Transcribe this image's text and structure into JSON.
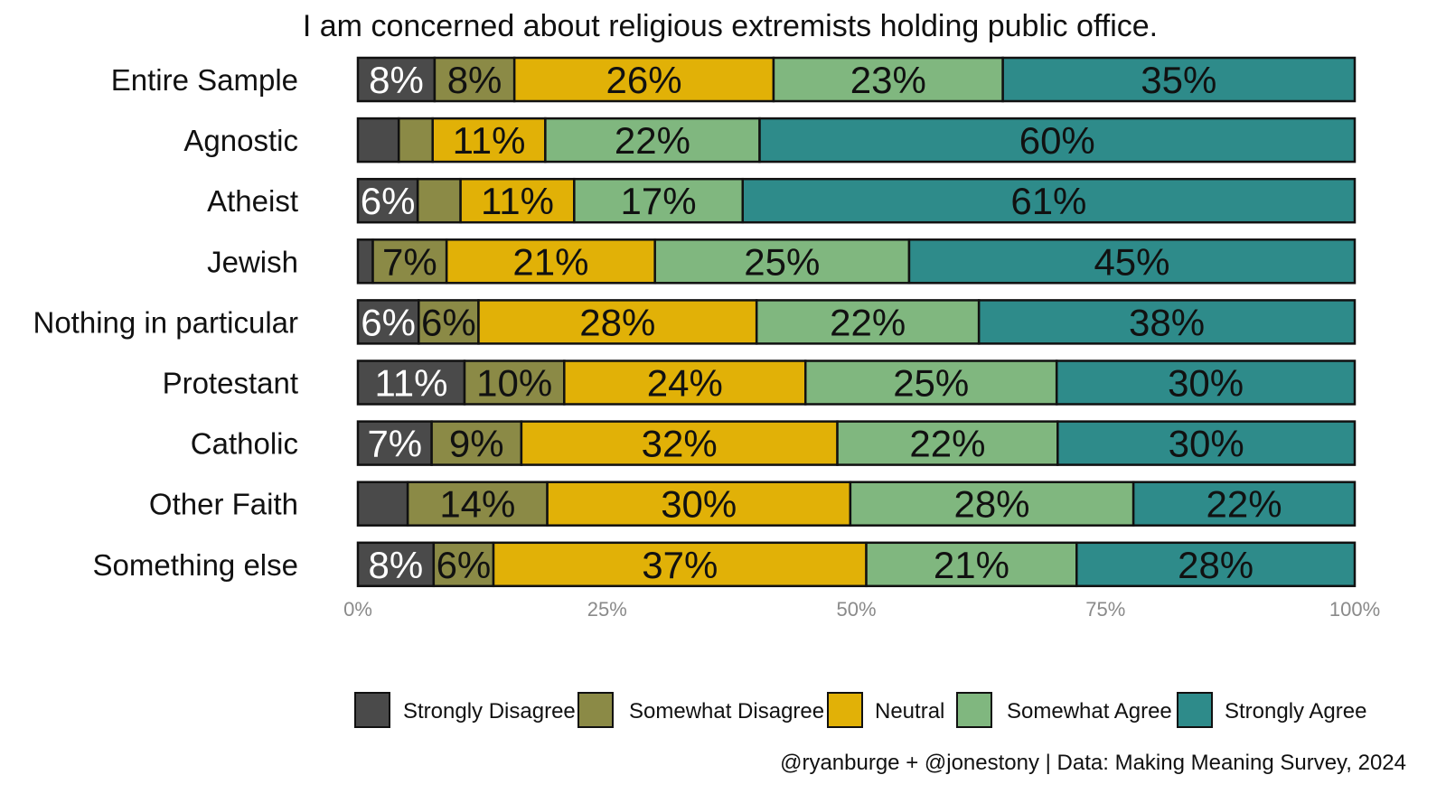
{
  "chart_data": {
    "type": "bar",
    "orientation": "horizontal",
    "stacked": true,
    "title": "I am concerned about religious extremists holding public office.",
    "caption": "@ryanburge + @jonestony | Data: Making Meaning Survey, 2024",
    "categories": [
      "Entire Sample",
      "Agnostic",
      "Atheist",
      "Jewish",
      "Nothing in particular",
      "Protestant",
      "Catholic",
      "Other Faith",
      "Something else"
    ],
    "series": [
      {
        "name": "Strongly Disagree",
        "color": "#4a4a4a",
        "text_color": "#ffffff",
        "values": [
          7.7,
          4.1,
          6.0,
          1.5,
          6.1,
          10.7,
          7.4,
          5.0,
          7.6
        ],
        "labels": [
          "8%",
          "",
          "6%",
          "",
          "6%",
          "11%",
          "7%",
          "",
          "8%"
        ]
      },
      {
        "name": "Somewhat Disagree",
        "color": "#8b8a46",
        "text_color": "#111111",
        "values": [
          8.0,
          3.4,
          4.3,
          7.4,
          6.0,
          10.0,
          9.0,
          14.0,
          6.0
        ],
        "labels": [
          "8%",
          "",
          "",
          "7%",
          "6%",
          "10%",
          "9%",
          "14%",
          "6%"
        ]
      },
      {
        "name": "Neutral",
        "color": "#e1b107",
        "text_color": "#111111",
        "values": [
          26.0,
          11.3,
          11.4,
          20.9,
          27.9,
          24.2,
          31.7,
          30.4,
          37.4
        ],
        "labels": [
          "26%",
          "11%",
          "11%",
          "21%",
          "28%",
          "24%",
          "32%",
          "30%",
          "37%"
        ]
      },
      {
        "name": "Somewhat Agree",
        "color": "#80b77f",
        "text_color": "#111111",
        "values": [
          23.0,
          21.5,
          16.9,
          25.5,
          22.3,
          25.2,
          22.1,
          28.4,
          21.1
        ],
        "labels": [
          "23%",
          "22%",
          "17%",
          "25%",
          "22%",
          "25%",
          "22%",
          "28%",
          "21%"
        ]
      },
      {
        "name": "Strongly Agree",
        "color": "#2e8b8a",
        "text_color": "#111111",
        "values": [
          35.3,
          59.7,
          61.4,
          44.7,
          37.7,
          29.9,
          29.8,
          22.2,
          27.9
        ],
        "labels": [
          "35%",
          "60%",
          "61%",
          "45%",
          "38%",
          "30%",
          "30%",
          "22%",
          "28%"
        ]
      }
    ],
    "xlim": [
      0,
      100
    ],
    "x_ticks": [
      0,
      25,
      50,
      75,
      100
    ],
    "x_tick_labels": [
      "0%",
      "25%",
      "50%",
      "75%",
      "100%"
    ],
    "grid": false,
    "legend_position": "bottom"
  }
}
